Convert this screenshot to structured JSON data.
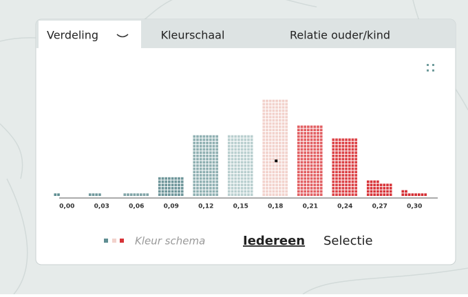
{
  "tabs": [
    "Verdeling",
    "Kleurschaal",
    "Relatie ouder/kind"
  ],
  "chart_data": {
    "type": "waffle",
    "categories": [
      "0,00",
      "0,03",
      "0,06",
      "0,09",
      "0,12",
      "0,15",
      "0,18",
      "0,21",
      "0,24",
      "0,27",
      "0,30"
    ],
    "values": [
      2,
      4,
      8,
      48,
      152,
      152,
      240,
      176,
      144,
      36,
      10
    ],
    "colors": [
      "#5f8e92",
      "#6f989c",
      "#7fa3a6",
      "#6d9599",
      "#8fb0b2",
      "#b9cfcf",
      "#f2d2cc",
      "#e25f62",
      "#dc4145",
      "#d73338",
      "#d42d32"
    ]
  },
  "footer": {
    "legend_label": "Kleur schema",
    "options": [
      "Iedereen",
      "Selectie"
    ]
  }
}
